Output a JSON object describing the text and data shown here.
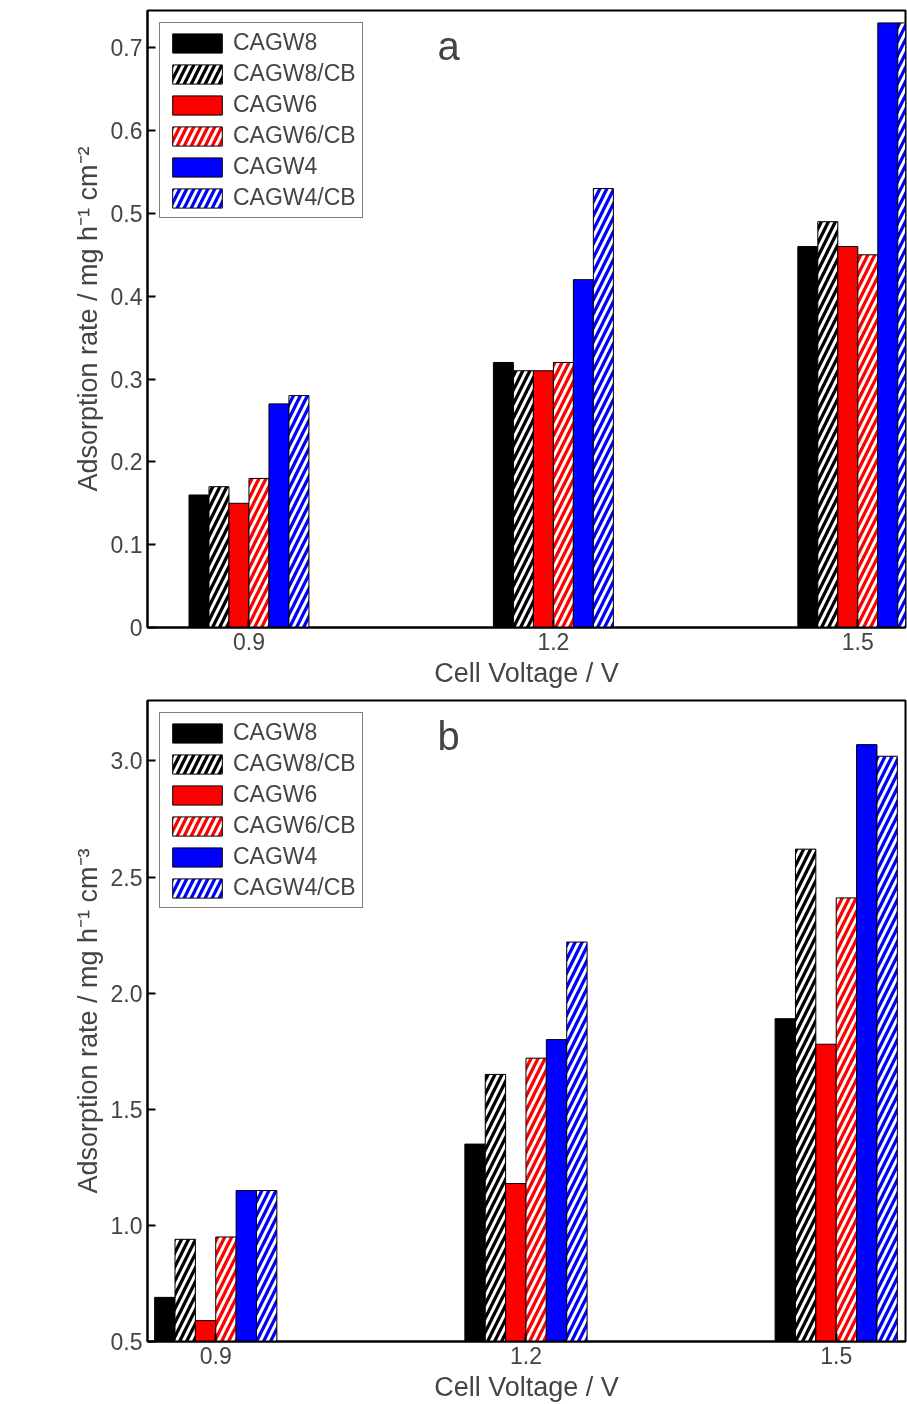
{
  "chart_data": [
    {
      "type": "bar",
      "annotations": [
        "a"
      ],
      "xlabel": "Cell Voltage / V",
      "ylabel": "Adsorption rate / mg h⁻¹ cm⁻²",
      "x": [
        0.9,
        1.2,
        1.5
      ],
      "xlim": [
        0.8,
        1.547
      ],
      "xticks": [
        0.9,
        1.2,
        1.5
      ],
      "ylim": [
        0,
        0.745
      ],
      "yticks": [
        0.0,
        {
          "value": 0.1,
          "label": "0.1"
        },
        {
          "value": 0.2,
          "label": "0.2"
        },
        {
          "value": 0.3,
          "label": "0.3"
        },
        {
          "value": 0.4,
          "label": "0.4"
        },
        {
          "value": 0.5,
          "label": "0.5"
        },
        {
          "value": 0.6,
          "label": "0.6"
        },
        {
          "value": 0.7,
          "label": "0.7"
        }
      ],
      "grid": false,
      "legend": "top left",
      "series": [
        {
          "name": "CAGW8",
          "color": "#000000",
          "values": [
            0.16,
            0.32,
            0.46
          ]
        },
        {
          "name": "CAGW8/CB",
          "color": "#000000",
          "values": [
            0.17,
            0.31,
            0.49
          ]
        },
        {
          "name": "CAGW6",
          "color": "#ff0000",
          "values": [
            0.15,
            0.31,
            0.46
          ]
        },
        {
          "name": "CAGW6/CB",
          "color": "#ff0000",
          "values": [
            0.18,
            0.32,
            0.45
          ]
        },
        {
          "name": "CAGW4",
          "color": "#0000ff",
          "values": [
            0.27,
            0.42,
            0.73
          ]
        },
        {
          "name": "CAGW4/CB",
          "color": "#0000ff",
          "values": [
            0.28,
            0.53,
            0.73
          ]
        }
      ]
    },
    {
      "type": "bar",
      "annotations": [
        "b"
      ],
      "xlabel": "Cell Voltage / V",
      "ylabel": "Adsorption rate / mg h⁻¹ cm⁻³",
      "x": [
        0.9,
        1.2,
        1.5
      ],
      "xlim": [
        0.834,
        1.567
      ],
      "xticks": [
        0.9,
        1.2,
        1.5
      ],
      "ylim": [
        0.5,
        3.26
      ],
      "yticks": [
        0.5,
        {
          "value": 1.0,
          "label": "1.0"
        },
        1.5,
        {
          "value": 2.0,
          "label": "2.0"
        },
        2.5,
        {
          "value": 3.0,
          "label": "3.0"
        }
      ],
      "grid": false,
      "legend": "top left",
      "series": [
        {
          "name": "CAGW8",
          "color": "#000000",
          "values": [
            0.69,
            1.35,
            1.89
          ]
        },
        {
          "name": "CAGW8/CB",
          "color": "#000000",
          "values": [
            0.94,
            1.65,
            2.62
          ]
        },
        {
          "name": "CAGW6",
          "color": "#ff0000",
          "values": [
            0.59,
            1.18,
            1.78
          ]
        },
        {
          "name": "CAGW6/CB",
          "color": "#ff0000",
          "values": [
            0.95,
            1.72,
            2.41
          ]
        },
        {
          "name": "CAGW4",
          "color": "#0000ff",
          "values": [
            1.15,
            1.8,
            3.07
          ]
        },
        {
          "name": "CAGW4/CB",
          "color": "#0000ff",
          "values": [
            1.15,
            2.22,
            3.02
          ]
        }
      ]
    }
  ]
}
